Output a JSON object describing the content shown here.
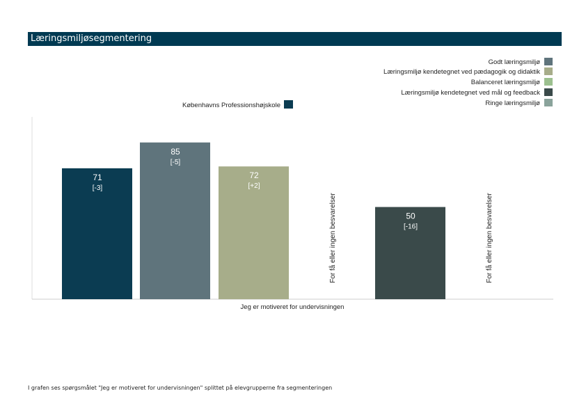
{
  "page": {
    "title": "Læringsmiljøsegmentering",
    "footnote": "I grafen ses spørgsmålet \"Jeg er motiveret for undervisningen\" splittet på elevgrupperne fra segmenteringen"
  },
  "colors": {
    "title_bar": "#003a52",
    "kp": "#0b3c52",
    "godt": "#5f747c",
    "paedagogik": "#a7ad8a",
    "balanceret": "#9cc08f",
    "maal": "#3a4a4a",
    "ringe": "#8aa39b",
    "axis": "#cccccc",
    "grid": "#dddddd"
  },
  "chart_data": {
    "type": "bar",
    "title": "",
    "xlabel": "Jeg er motiveret for undervisningen",
    "ylabel": "",
    "ylim": [
      0,
      100
    ],
    "grid": false,
    "legend_placement": "top-right",
    "legend_kp": "Københavns Professionshøjskole",
    "legend": [
      "Godt læringsmiljø",
      "Læringsmiljø kendetegnet ved pædagogik og didaktik",
      "Balanceret læringsmiljø",
      "Læringsmiljø kendetegnet ved mål og feedback",
      "Ringe læringsmiljø"
    ],
    "series": [
      {
        "name": "Københavns Professionshøjskole",
        "value": 71,
        "diff": "[-3]",
        "note": ""
      },
      {
        "name": "Godt læringsmiljø",
        "value": 85,
        "diff": "[-5]",
        "note": ""
      },
      {
        "name": "Læringsmiljø kendetegnet ved pædagogik og didaktik",
        "value": 72,
        "diff": "[+2]",
        "note": ""
      },
      {
        "name": "Balanceret læringsmiljø",
        "value": null,
        "diff": "",
        "note": "For få eller ingen besvarelser"
      },
      {
        "name": "Læringsmiljø kendetegnet ved mål og feedback",
        "value": 50,
        "diff": "[-16]",
        "note": ""
      },
      {
        "name": "Ringe læringsmiljø",
        "value": null,
        "diff": "",
        "note": "For få eller ingen besvarelser"
      }
    ]
  }
}
